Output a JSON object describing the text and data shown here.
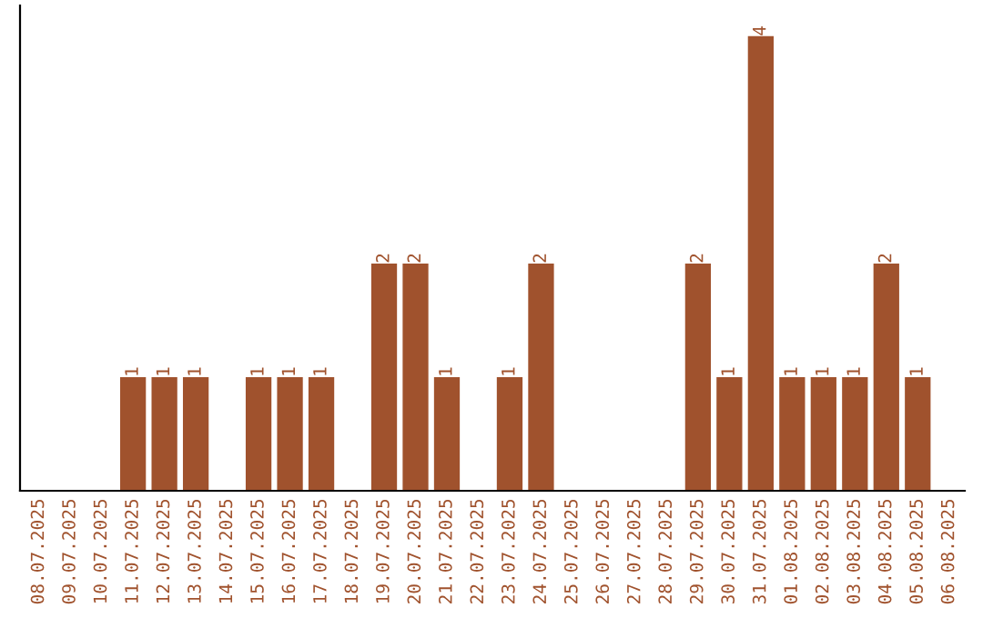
{
  "chart_data": {
    "type": "bar",
    "categories": [
      "08.07.2025",
      "09.07.2025",
      "10.07.2025",
      "11.07.2025",
      "12.07.2025",
      "13.07.2025",
      "14.07.2025",
      "15.07.2025",
      "16.07.2025",
      "17.07.2025",
      "18.07.2025",
      "19.07.2025",
      "20.07.2025",
      "21.07.2025",
      "22.07.2025",
      "23.07.2025",
      "24.07.2025",
      "25.07.2025",
      "26.07.2025",
      "27.07.2025",
      "28.07.2025",
      "29.07.2025",
      "30.07.2025",
      "31.07.2025",
      "01.08.2025",
      "02.08.2025",
      "03.08.2025",
      "04.08.2025",
      "05.08.2025",
      "06.08.2025"
    ],
    "values": [
      0,
      0,
      0,
      1,
      1,
      1,
      0,
      1,
      1,
      1,
      0,
      2,
      2,
      1,
      0,
      1,
      2,
      0,
      0,
      0,
      0,
      2,
      1,
      4,
      1,
      1,
      1,
      2,
      1,
      0
    ],
    "value_labels": [
      null,
      null,
      null,
      "1",
      "1",
      "1",
      null,
      "1",
      "1",
      "1",
      null,
      "2",
      "2",
      "1",
      null,
      "1",
      "2",
      null,
      null,
      null,
      null,
      "2",
      "1",
      "4",
      "1",
      "1",
      "1",
      "2",
      "1",
      null
    ],
    "color": "#a0522d",
    "ylim": [
      0,
      4.27
    ],
    "tick_labels": "x",
    "grid": false,
    "legend": false
  }
}
